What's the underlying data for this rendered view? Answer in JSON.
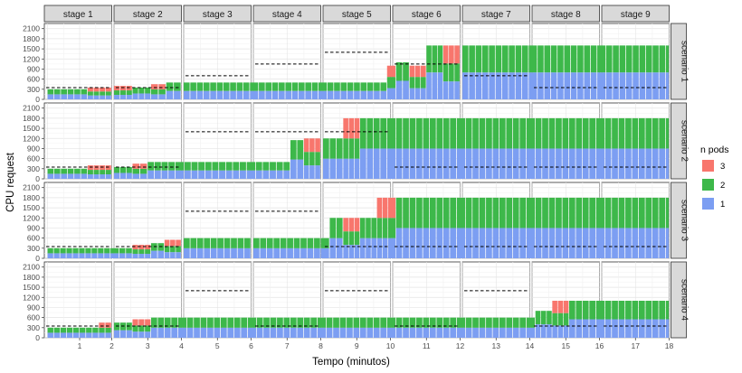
{
  "chart_data": {
    "type": "bar",
    "stacked": true,
    "facet_columns": [
      "stage 1",
      "stage 2",
      "stage 3",
      "stage 4",
      "stage 5",
      "stage 6",
      "stage 7",
      "stage 8",
      "stage 9"
    ],
    "facet_rows": [
      "scenario 1",
      "scenario 2",
      "scenario 3",
      "scenario 4"
    ],
    "xlabel": "Tempo (minutos)",
    "ylabel": "CPU request",
    "x_ticks": [
      1,
      2,
      3,
      4,
      5,
      6,
      7,
      8,
      9,
      10,
      11,
      12,
      13,
      14,
      15,
      16,
      17,
      18
    ],
    "y_ticks": [
      0,
      300,
      600,
      900,
      1200,
      1500,
      1800,
      2100
    ],
    "ylim": [
      0,
      2200
    ],
    "grid": true,
    "legend": {
      "title": "n pods",
      "position": "right",
      "entries": [
        {
          "label": "3",
          "color": "#F8766D"
        },
        {
          "label": "2",
          "color": "#3DB84A"
        },
        {
          "label": "1",
          "color": "#7C9EF2"
        }
      ]
    },
    "series_colors": {
      "pod1": "#7C9EF2",
      "pod2": "#3DB84A",
      "pod3": "#F8766D"
    },
    "rows": [
      {
        "name": "scenario 1",
        "threshold_levels": [
          350,
          350,
          700,
          1050,
          1400,
          1050,
          700,
          350,
          350
        ],
        "segments": [
          {
            "x0": 0,
            "x1": 1.25,
            "pods": 2
          },
          {
            "x0": 1.25,
            "x1": 2,
            "pods": 3
          },
          {
            "x0": 2,
            "x1": 2.55,
            "pods": 3
          },
          {
            "x0": 2.55,
            "x1": 3.1,
            "pods": 2
          },
          {
            "x0": 3.1,
            "x1": 3.55,
            "pods": 3
          },
          {
            "x0": 3.55,
            "x1": 4,
            "pods": 2
          },
          {
            "x0": 4,
            "x1": 9.9,
            "pods": 2
          },
          {
            "x0": 9.9,
            "x1": 10.1,
            "pods": 3
          },
          {
            "x0": 10.1,
            "x1": 10.5,
            "pods": 2
          },
          {
            "x0": 10.5,
            "x1": 11,
            "pods": 3
          },
          {
            "x0": 11,
            "x1": 11.5,
            "pods": 2
          },
          {
            "x0": 11.5,
            "x1": 12,
            "pods": 3
          },
          {
            "x0": 12,
            "x1": 18.1,
            "pods": 2
          }
        ],
        "bars": [
          {
            "x0": 0,
            "x1": 1.25,
            "level": 300
          },
          {
            "x0": 1.25,
            "x1": 2,
            "level": 350
          },
          {
            "x0": 2,
            "x1": 2.55,
            "level": 400
          },
          {
            "x0": 2.55,
            "x1": 3.1,
            "level": 350
          },
          {
            "x0": 3.1,
            "x1": 3.55,
            "level": 450
          },
          {
            "x0": 3.55,
            "x1": 4,
            "level": 500
          },
          {
            "x0": 4,
            "x1": 9.9,
            "level": 500
          },
          {
            "x0": 9.9,
            "x1": 10.1,
            "level": 1000
          },
          {
            "x0": 10.1,
            "x1": 10.5,
            "level": 1100
          },
          {
            "x0": 10.5,
            "x1": 11,
            "level": 1000
          },
          {
            "x0": 11,
            "x1": 11.5,
            "level": 1600
          },
          {
            "x0": 11.5,
            "x1": 12,
            "level": 1600
          },
          {
            "x0": 12,
            "x1": 18.1,
            "level": 1600
          }
        ]
      },
      {
        "name": "scenario 2",
        "threshold_levels": [
          350,
          350,
          1400,
          1400,
          1400,
          350,
          350,
          350,
          350
        ],
        "segments": [
          {
            "x0": 0,
            "x1": 1.25,
            "pods": 2
          },
          {
            "x0": 1.25,
            "x1": 2,
            "pods": 3
          },
          {
            "x0": 2,
            "x1": 2.55,
            "pods": 2
          },
          {
            "x0": 2.55,
            "x1": 3.0,
            "pods": 3
          },
          {
            "x0": 3.0,
            "x1": 7.5,
            "pods": 2
          },
          {
            "x0": 7.5,
            "x1": 8,
            "pods": 3
          },
          {
            "x0": 8,
            "x1": 8.6,
            "pods": 2
          },
          {
            "x0": 8.6,
            "x1": 9.1,
            "pods": 3
          },
          {
            "x0": 9.1,
            "x1": 18.1,
            "pods": 2
          }
        ],
        "bars": [
          {
            "x0": 0,
            "x1": 1.25,
            "level": 300
          },
          {
            "x0": 1.25,
            "x1": 2,
            "level": 400
          },
          {
            "x0": 2,
            "x1": 2.55,
            "level": 350
          },
          {
            "x0": 2.55,
            "x1": 3.0,
            "level": 450
          },
          {
            "x0": 3.0,
            "x1": 7.1,
            "level": 500
          },
          {
            "x0": 7.1,
            "x1": 7.5,
            "level": 1150
          },
          {
            "x0": 7.5,
            "x1": 8,
            "level": 1200
          },
          {
            "x0": 8,
            "x1": 8.6,
            "level": 1200
          },
          {
            "x0": 8.6,
            "x1": 9.1,
            "level": 1800
          },
          {
            "x0": 9.1,
            "x1": 18.1,
            "level": 1800
          }
        ]
      },
      {
        "name": "scenario 3",
        "threshold_levels": [
          350,
          350,
          1400,
          1400,
          350,
          350,
          350,
          350,
          350
        ],
        "segments": [
          {
            "x0": 0,
            "x1": 2.55,
            "pods": 2
          },
          {
            "x0": 2.55,
            "x1": 3.1,
            "pods": 3
          },
          {
            "x0": 3.1,
            "x1": 3.5,
            "pods": 2
          },
          {
            "x0": 3.5,
            "x1": 4,
            "pods": 3
          },
          {
            "x0": 4,
            "x1": 8.6,
            "pods": 2
          },
          {
            "x0": 8.6,
            "x1": 9.1,
            "pods": 3
          },
          {
            "x0": 9.1,
            "x1": 9.6,
            "pods": 2
          },
          {
            "x0": 9.6,
            "x1": 10.1,
            "pods": 3
          },
          {
            "x0": 10.1,
            "x1": 18.1,
            "pods": 2
          }
        ],
        "bars": [
          {
            "x0": 0,
            "x1": 2.55,
            "level": 300
          },
          {
            "x0": 2.55,
            "x1": 3.1,
            "level": 400
          },
          {
            "x0": 3.1,
            "x1": 3.5,
            "level": 450
          },
          {
            "x0": 3.5,
            "x1": 4,
            "level": 550
          },
          {
            "x0": 4,
            "x1": 8.2,
            "level": 600
          },
          {
            "x0": 8.2,
            "x1": 8.6,
            "level": 1200
          },
          {
            "x0": 8.6,
            "x1": 9.1,
            "level": 1200
          },
          {
            "x0": 9.1,
            "x1": 9.6,
            "level": 1200
          },
          {
            "x0": 9.6,
            "x1": 10.1,
            "level": 1800
          },
          {
            "x0": 10.1,
            "x1": 18.1,
            "level": 1800
          }
        ]
      },
      {
        "name": "scenario 4",
        "threshold_levels": [
          350,
          350,
          1400,
          350,
          1400,
          350,
          1400,
          350,
          350
        ],
        "segments": [
          {
            "x0": 0,
            "x1": 1.6,
            "pods": 2
          },
          {
            "x0": 1.6,
            "x1": 2,
            "pods": 3
          },
          {
            "x0": 2,
            "x1": 2.55,
            "pods": 2
          },
          {
            "x0": 2.55,
            "x1": 3.1,
            "pods": 3
          },
          {
            "x0": 3.1,
            "x1": 14.6,
            "pods": 2
          },
          {
            "x0": 14.6,
            "x1": 15.1,
            "pods": 3
          },
          {
            "x0": 15.1,
            "x1": 18.1,
            "pods": 2
          }
        ],
        "bars": [
          {
            "x0": 0,
            "x1": 1.6,
            "level": 300
          },
          {
            "x0": 1.6,
            "x1": 2,
            "level": 450
          },
          {
            "x0": 2,
            "x1": 2.55,
            "level": 450
          },
          {
            "x0": 2.55,
            "x1": 3.1,
            "level": 550
          },
          {
            "x0": 3.1,
            "x1": 14.1,
            "level": 600
          },
          {
            "x0": 14.1,
            "x1": 14.6,
            "level": 800
          },
          {
            "x0": 14.6,
            "x1": 15.1,
            "level": 1100
          },
          {
            "x0": 15.1,
            "x1": 18.1,
            "level": 1100
          }
        ]
      }
    ]
  }
}
